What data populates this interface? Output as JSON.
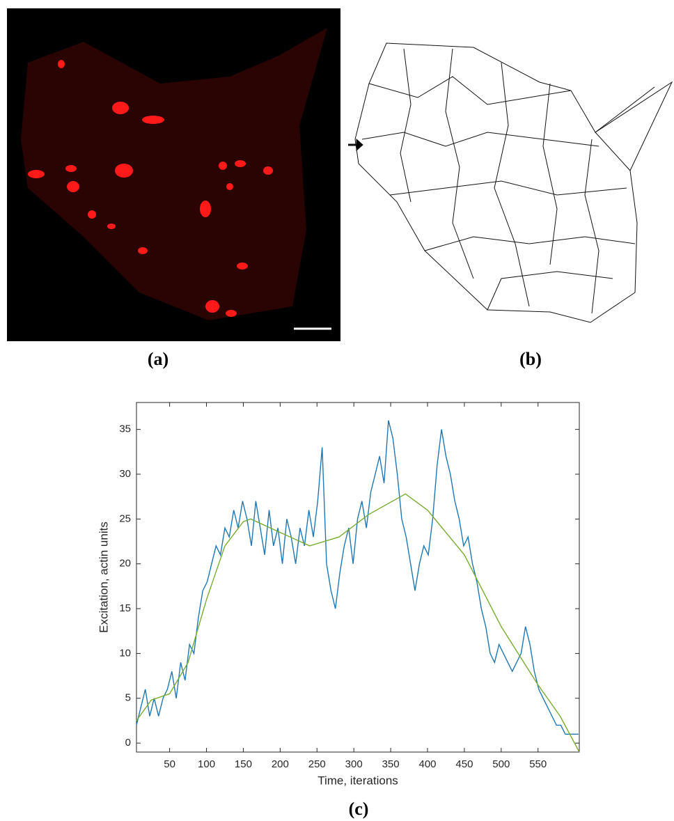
{
  "panels": {
    "a": "(a)",
    "b": "(b)",
    "c": "(c)"
  },
  "chart_data": {
    "type": "line",
    "x_label": "Time, iterations",
    "y_label": "Excitation, actin units",
    "xlim": [
      5,
      606
    ],
    "ylim": [
      -1,
      38
    ],
    "xticks": [
      50,
      100,
      150,
      200,
      250,
      300,
      350,
      400,
      450,
      500,
      550
    ],
    "yticks": [
      0,
      5,
      10,
      15,
      20,
      25,
      30,
      35
    ],
    "series": [
      {
        "color": "#1f77b4",
        "x": [
          5,
          11,
          17,
          23,
          29,
          35,
          41,
          47,
          53,
          59,
          65,
          71,
          77,
          83,
          89,
          95,
          101,
          107,
          113,
          119,
          125,
          131,
          137,
          143,
          149,
          155,
          161,
          167,
          173,
          179,
          185,
          191,
          197,
          203,
          209,
          215,
          221,
          227,
          233,
          239,
          245,
          251,
          257,
          263,
          269,
          275,
          281,
          287,
          293,
          299,
          305,
          311,
          317,
          323,
          329,
          335,
          341,
          347,
          353,
          359,
          365,
          371,
          377,
          383,
          389,
          395,
          401,
          407,
          413,
          419,
          425,
          431,
          437,
          443,
          449,
          455,
          461,
          467,
          473,
          479,
          485,
          491,
          497,
          503,
          509,
          515,
          521,
          527,
          533,
          539,
          545,
          551,
          557,
          563,
          569,
          575,
          581,
          587,
          593,
          599,
          605
        ],
        "values": [
          2,
          4,
          6,
          3,
          5,
          3,
          5,
          6,
          8,
          5,
          9,
          7,
          11,
          10,
          14,
          17,
          18,
          20,
          22,
          21,
          24,
          23,
          26,
          24,
          27,
          25,
          22,
          27,
          24,
          21,
          26,
          22,
          24,
          20,
          25,
          23,
          20,
          24,
          22,
          26,
          23,
          27,
          33,
          20,
          17,
          15,
          19,
          22,
          24,
          20,
          25,
          27,
          24,
          28,
          30,
          32,
          29,
          36,
          34,
          30,
          25,
          23,
          20,
          17,
          20,
          22,
          21,
          25,
          31,
          35,
          32,
          30,
          27,
          25,
          22,
          23,
          20,
          18,
          15,
          13,
          10,
          9,
          11,
          10,
          9,
          8,
          9,
          10,
          13,
          11,
          8,
          6,
          5,
          4,
          3,
          2,
          2,
          1,
          1,
          1,
          1
        ]
      },
      {
        "color": "#77ac30",
        "x": [
          5,
          25,
          50,
          75,
          100,
          125,
          150,
          160,
          200,
          240,
          280,
          320,
          370,
          400,
          450,
          500,
          550,
          580,
          606
        ],
        "values": [
          2.5,
          4.8,
          5.5,
          9,
          16,
          22,
          24.7,
          25,
          23.5,
          22,
          23,
          25.5,
          27.8,
          26,
          21,
          13,
          6.5,
          3,
          -1
        ]
      }
    ]
  }
}
